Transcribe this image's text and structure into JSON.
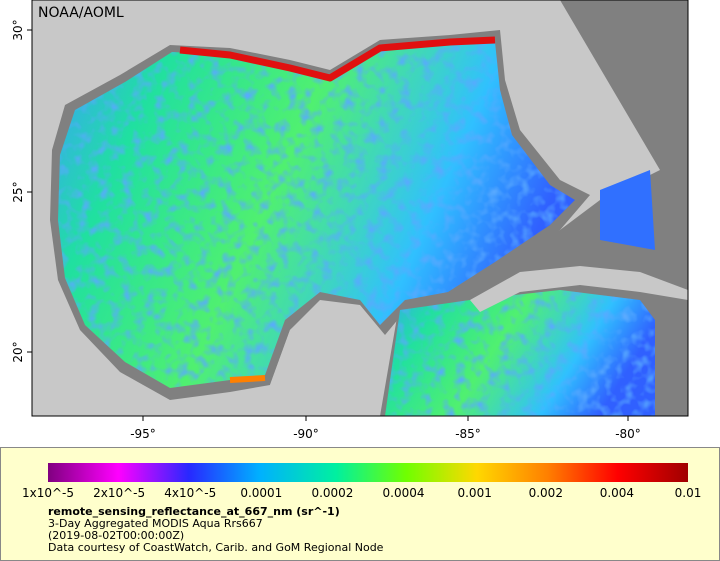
{
  "map": {
    "attribution": "NOAA/AOML",
    "lat_labels": [
      "30°",
      "25°",
      "20°"
    ],
    "lon_labels": [
      "-95°",
      "-90°",
      "-85°",
      "-80°"
    ]
  },
  "colorbar": {
    "tick_labels": [
      "1x10^-5",
      "2x10^-5",
      "4x10^-5",
      "0.0001",
      "0.0002",
      "0.0004",
      "0.001",
      "0.002",
      "0.004",
      "0.01"
    ]
  },
  "caption": {
    "variable": "remote_sensing_reflectance_at_667_nm (sr^-1)",
    "lines": [
      "3-Day Aggregated MODIS Aqua Rrs667",
      "(2019-08-02T00:00:00Z)",
      "Data courtesy of CoastWatch, Carib. and GoM Regional Node"
    ]
  }
}
